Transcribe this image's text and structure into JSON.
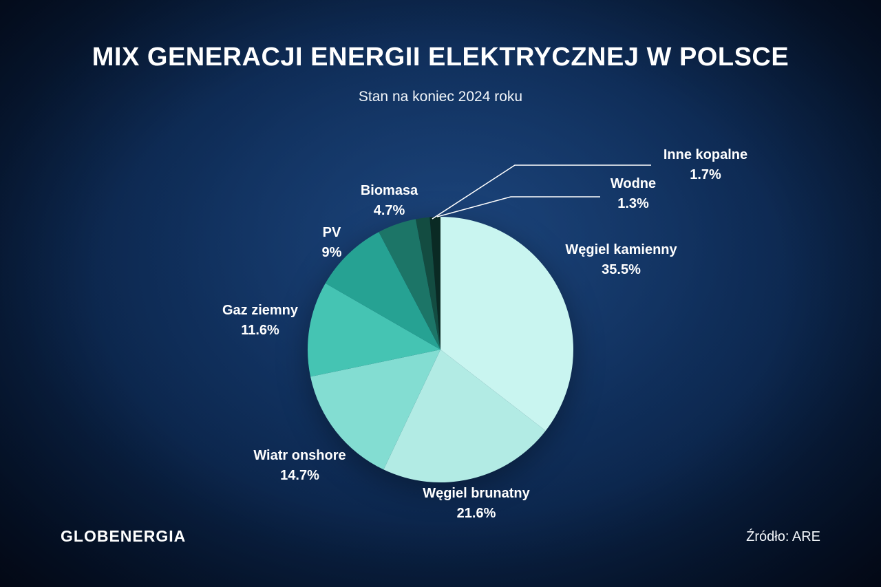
{
  "title": "MIX GENERACJI ENERGII ELEKTRYCZNEJ W POLSCE",
  "subtitle": "Stan na koniec 2024 roku",
  "footer": {
    "logo_text": "GLOBENERGIA",
    "source": "Źródło: ARE"
  },
  "chart_data": {
    "type": "pie",
    "title": "MIX GENERACJI ENERGII ELEKTRYCZNEJ W POLSCE",
    "subtitle": "Stan na koniec 2024 roku",
    "start_angle_deg": 0,
    "direction": "clockwise",
    "legend_position": "labels-around-pie",
    "slices": [
      {
        "label": "Węgiel kamienny",
        "value": 35.5,
        "pct": "35.5%",
        "color": "#c9f5f0"
      },
      {
        "label": "Węgiel brunatny",
        "value": 21.6,
        "pct": "21.6%",
        "color": "#b2ebe4"
      },
      {
        "label": "Wiatr onshore",
        "value": 14.7,
        "pct": "14.7%",
        "color": "#83ddd2"
      },
      {
        "label": "Gaz ziemny",
        "value": 11.6,
        "pct": "11.6%",
        "color": "#45c4b3"
      },
      {
        "label": "PV",
        "value": 9,
        "pct": "9%",
        "color": "#26a293"
      },
      {
        "label": "Biomasa",
        "value": 4.7,
        "pct": "4.7%",
        "color": "#1c7567"
      },
      {
        "label": "Inne kopalne",
        "value": 1.7,
        "pct": "1.7%",
        "color": "#134c41"
      },
      {
        "label": "Wodne",
        "value": 1.3,
        "pct": "1.3%",
        "color": "#0a2a24"
      }
    ]
  }
}
